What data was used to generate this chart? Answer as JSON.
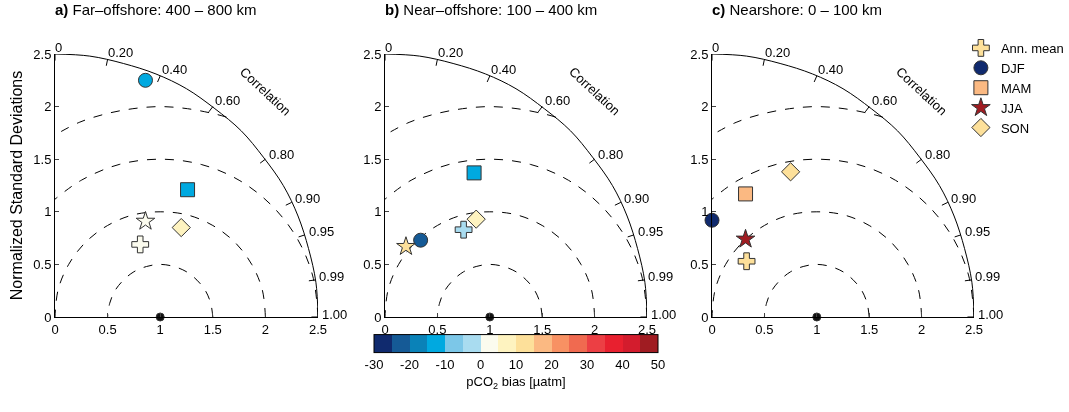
{
  "chart_data": [
    {
      "type": "scatter",
      "title": "a) Far–offshore: 400 – 800 km",
      "ylabel": "Normalized Standard Deviations",
      "xlim": [
        0,
        2.5
      ],
      "ylim": [
        0,
        2.5
      ],
      "xticks": [
        0,
        0.5,
        1,
        1.5,
        2,
        2.5
      ],
      "yticks": [
        0,
        0.5,
        1,
        1.5,
        2,
        2.5
      ],
      "legend": false,
      "annotations": [
        "0",
        "0.20",
        "0.40",
        "0.60",
        "0.80",
        "0.90",
        "0.95",
        "0.99",
        "1.00",
        "Correlation"
      ],
      "series": [
        {
          "type": "line",
          "line_style": "solid",
          "marker": "none",
          "color": "#000000",
          "x": [
            2.5,
            2.48,
            2.41,
            2.31,
            2.17,
            1.98,
            1.77,
            1.52,
            1.25,
            0.96,
            0.65,
            0.33,
            0
          ],
          "values": [
            0,
            0.33,
            0.65,
            0.96,
            1.25,
            1.52,
            1.77,
            1.98,
            2.17,
            2.31,
            2.41,
            2.48,
            2.5
          ]
        },
        {
          "type": "line",
          "line_style": "dashed",
          "marker": "none",
          "color": "#000000",
          "x": [
            1.5,
            1.48,
            1.43,
            1.35,
            1.25,
            1.13,
            1,
            0.87,
            0.75,
            0.65,
            0.57,
            0.52,
            0.5
          ],
          "values": [
            0,
            0.13,
            0.25,
            0.35,
            0.43,
            0.48,
            0.5,
            0.48,
            0.43,
            0.35,
            0.25,
            0.13,
            0
          ]
        },
        {
          "type": "line",
          "line_style": "dashed",
          "marker": "none",
          "color": "#000000",
          "x": [
            2,
            1.97,
            1.87,
            1.71,
            1.5,
            1.26,
            1,
            0.74,
            0.5,
            0.29,
            0.13,
            0.03,
            0
          ],
          "values": [
            0,
            0.26,
            0.5,
            0.71,
            0.87,
            0.97,
            1,
            0.97,
            0.87,
            0.71,
            0.5,
            0.26,
            0
          ]
        },
        {
          "type": "line",
          "line_style": "dashed",
          "marker": "none",
          "color": "#000000",
          "x": [
            2.5,
            2.45,
            2.3,
            2.06,
            1.75,
            1.39,
            1,
            0.61,
            0.25,
            0
          ],
          "values": [
            0,
            0.39,
            0.75,
            1.06,
            1.3,
            1.45,
            1.5,
            1.45,
            1.3,
            1.12
          ]
        },
        {
          "type": "line",
          "line_style": "dashed",
          "marker": "none",
          "color": "#000000",
          "x": [
            1.63,
            1.52,
            1.26,
            1,
            0.74,
            0.48,
            0.23,
            0
          ],
          "values": [
            1.9,
            1.93,
            1.98,
            2,
            1.98,
            1.93,
            1.85,
            1.73
          ]
        },
        {
          "marker": "cross",
          "color": "#fbfbee",
          "x": [
            0.81
          ],
          "values": [
            0.69
          ]
        },
        {
          "marker": "circle",
          "color": "#00a9e0",
          "x": [
            0.86
          ],
          "values": [
            2.25
          ]
        },
        {
          "marker": "square",
          "color": "#00a9e0",
          "x": [
            1.26
          ],
          "values": [
            1.21
          ]
        },
        {
          "marker": "star",
          "color": "#fbfbee",
          "x": [
            0.86
          ],
          "values": [
            0.91
          ]
        },
        {
          "marker": "diamond",
          "color": "#fef3c0",
          "x": [
            1.2
          ],
          "values": [
            0.85
          ]
        },
        {
          "marker": "circle",
          "color": "#111111",
          "x": [
            1
          ],
          "values": [
            0
          ]
        }
      ]
    },
    {
      "type": "scatter",
      "title": "b) Near–offshore: 100 – 400 km",
      "xlim": [
        0,
        2.5
      ],
      "ylim": [
        0,
        2.5
      ],
      "xticks": [
        0,
        0.5,
        1,
        1.5,
        2,
        2.5
      ],
      "yticks": [
        0,
        0.5,
        1,
        1.5,
        2,
        2.5
      ],
      "legend": false,
      "clim": [
        -30,
        50
      ],
      "cticks": [
        -30,
        -20,
        -10,
        0,
        10,
        20,
        30,
        40,
        50
      ],
      "clabel": "pCO$_{2}$ bias [µatm]",
      "annotations": [
        "0",
        "0.20",
        "0.40",
        "0.60",
        "0.80",
        "0.90",
        "0.95",
        "0.99",
        "1.00",
        "Correlation"
      ],
      "series": [
        {
          "type": "line",
          "line_style": "solid",
          "marker": "none",
          "color": "#000000",
          "x": [
            2.5,
            2.48,
            2.41,
            2.31,
            2.17,
            1.98,
            1.77,
            1.52,
            1.25,
            0.96,
            0.65,
            0.33,
            0
          ],
          "values": [
            0,
            0.33,
            0.65,
            0.96,
            1.25,
            1.52,
            1.77,
            1.98,
            2.17,
            2.31,
            2.41,
            2.48,
            2.5
          ]
        },
        {
          "type": "line",
          "line_style": "dashed",
          "marker": "none",
          "color": "#000000",
          "x": [
            1.5,
            1.48,
            1.43,
            1.35,
            1.25,
            1.13,
            1,
            0.87,
            0.75,
            0.65,
            0.57,
            0.52,
            0.5
          ],
          "values": [
            0,
            0.13,
            0.25,
            0.35,
            0.43,
            0.48,
            0.5,
            0.48,
            0.43,
            0.35,
            0.25,
            0.13,
            0
          ]
        },
        {
          "type": "line",
          "line_style": "dashed",
          "marker": "none",
          "color": "#000000",
          "x": [
            2,
            1.97,
            1.87,
            1.71,
            1.5,
            1.26,
            1,
            0.74,
            0.5,
            0.29,
            0.13,
            0.03,
            0
          ],
          "values": [
            0,
            0.26,
            0.5,
            0.71,
            0.87,
            0.97,
            1,
            0.97,
            0.87,
            0.71,
            0.5,
            0.26,
            0
          ]
        },
        {
          "type": "line",
          "line_style": "dashed",
          "marker": "none",
          "color": "#000000",
          "x": [
            2.5,
            2.45,
            2.3,
            2.06,
            1.75,
            1.39,
            1,
            0.61,
            0.25,
            0
          ],
          "values": [
            0,
            0.39,
            0.75,
            1.06,
            1.3,
            1.45,
            1.5,
            1.45,
            1.3,
            1.12
          ]
        },
        {
          "type": "line",
          "line_style": "dashed",
          "marker": "none",
          "color": "#000000",
          "x": [
            1.63,
            1.52,
            1.26,
            1,
            0.74,
            0.48,
            0.23,
            0
          ],
          "values": [
            1.9,
            1.93,
            1.98,
            2,
            1.98,
            1.93,
            1.85,
            1.73
          ]
        },
        {
          "marker": "cross",
          "x": [
            0.75
          ],
          "values": [
            0.83
          ],
          "cvalues": [
            -2.5
          ]
        },
        {
          "marker": "circle",
          "x": [
            0.34
          ],
          "values": [
            0.73
          ],
          "cvalues": [
            -22.5
          ]
        },
        {
          "marker": "square",
          "x": [
            0.85
          ],
          "values": [
            1.37
          ],
          "cvalues": [
            -12.5
          ]
        },
        {
          "marker": "star",
          "x": [
            0.2
          ],
          "values": [
            0.67
          ],
          "cvalues": [
            12.5
          ]
        },
        {
          "marker": "diamond",
          "x": [
            0.87
          ],
          "values": [
            0.93
          ],
          "cvalues": [
            7.5
          ]
        },
        {
          "marker": "circle",
          "color": "#111111",
          "x": [
            1
          ],
          "values": [
            0
          ]
        }
      ]
    },
    {
      "type": "scatter",
      "title": "c) Nearshore: 0 – 100 km",
      "xlim": [
        0,
        2.5
      ],
      "ylim": [
        0,
        2.5
      ],
      "xticks": [
        0,
        0.5,
        1,
        1.5,
        2,
        2.5
      ],
      "yticks": [
        0,
        0.5,
        1,
        1.5,
        2,
        2.5
      ],
      "legend": "top right",
      "annotations": [
        "0",
        "0.20",
        "0.40",
        "0.60",
        "0.80",
        "0.90",
        "0.95",
        "0.99",
        "1.00",
        "Correlation"
      ],
      "series": [
        {
          "type": "line",
          "line_style": "solid",
          "marker": "none",
          "color": "#000000",
          "x": [
            2.5,
            2.48,
            2.41,
            2.31,
            2.17,
            1.98,
            1.77,
            1.52,
            1.25,
            0.96,
            0.65,
            0.33,
            0
          ],
          "values": [
            0,
            0.33,
            0.65,
            0.96,
            1.25,
            1.52,
            1.77,
            1.98,
            2.17,
            2.31,
            2.41,
            2.48,
            2.5
          ]
        },
        {
          "type": "line",
          "line_style": "dashed",
          "marker": "none",
          "color": "#000000",
          "x": [
            1.5,
            1.48,
            1.43,
            1.35,
            1.25,
            1.13,
            1,
            0.87,
            0.75,
            0.65,
            0.57,
            0.52,
            0.5
          ],
          "values": [
            0,
            0.13,
            0.25,
            0.35,
            0.43,
            0.48,
            0.5,
            0.48,
            0.43,
            0.35,
            0.25,
            0.13,
            0
          ]
        },
        {
          "type": "line",
          "line_style": "dashed",
          "marker": "none",
          "color": "#000000",
          "x": [
            2,
            1.97,
            1.87,
            1.71,
            1.5,
            1.26,
            1,
            0.74,
            0.5,
            0.29,
            0.13,
            0.03,
            0
          ],
          "values": [
            0,
            0.26,
            0.5,
            0.71,
            0.87,
            0.97,
            1,
            0.97,
            0.87,
            0.71,
            0.5,
            0.26,
            0
          ]
        },
        {
          "type": "line",
          "line_style": "dashed",
          "marker": "none",
          "color": "#000000",
          "x": [
            2.5,
            2.45,
            2.3,
            2.06,
            1.75,
            1.39,
            1,
            0.61,
            0.25,
            0
          ],
          "values": [
            0,
            0.39,
            0.75,
            1.06,
            1.3,
            1.45,
            1.5,
            1.45,
            1.3,
            1.12
          ]
        },
        {
          "type": "line",
          "line_style": "dashed",
          "marker": "none",
          "color": "#000000",
          "x": [
            1.63,
            1.52,
            1.26,
            1,
            0.74,
            0.48,
            0.23,
            0
          ],
          "values": [
            1.9,
            1.93,
            1.98,
            2,
            1.98,
            1.93,
            1.85,
            1.73
          ]
        },
        {
          "name": "Ann. mean",
          "marker": "cross",
          "color": "#fde09a",
          "x": [
            0.33
          ],
          "values": [
            0.53
          ]
        },
        {
          "name": "DJF",
          "marker": "circle",
          "color": "#102a6e",
          "x": [
            0
          ],
          "values": [
            0.92
          ]
        },
        {
          "name": "MAM",
          "marker": "square",
          "color": "#fbb982",
          "x": [
            0.32
          ],
          "values": [
            1.17
          ]
        },
        {
          "name": "JJA",
          "marker": "star",
          "color": "#a01c22",
          "x": [
            0.32
          ],
          "values": [
            0.74
          ]
        },
        {
          "name": "SON",
          "marker": "diamond",
          "color": "#fde09a",
          "x": [
            0.75
          ],
          "values": [
            1.38
          ]
        },
        {
          "marker": "circle",
          "color": "#111111",
          "x": [
            1
          ],
          "values": [
            0
          ]
        }
      ]
    }
  ]
}
